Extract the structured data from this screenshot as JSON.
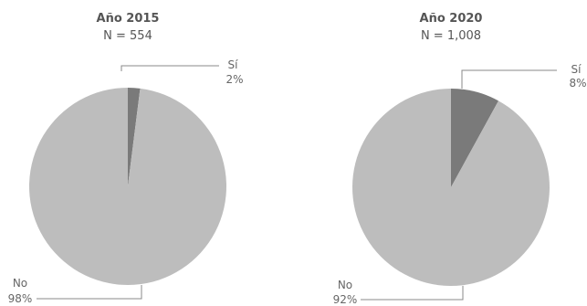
{
  "chart_data": [
    {
      "type": "pie",
      "title": "Año 2015",
      "subtitle": "N = 554",
      "slices": [
        {
          "name": "Sí",
          "value": 2,
          "label": "2%",
          "color": "#7a7a7a"
        },
        {
          "name": "No",
          "value": 98,
          "label": "98%",
          "color": "#bdbdbd"
        }
      ]
    },
    {
      "type": "pie",
      "title": "Año 2020",
      "subtitle": "N = 1,008",
      "slices": [
        {
          "name": "Sí",
          "value": 8,
          "label": "8%",
          "color": "#7a7a7a"
        },
        {
          "name": "No",
          "value": 92,
          "label": "92%",
          "color": "#bdbdbd"
        }
      ]
    }
  ]
}
